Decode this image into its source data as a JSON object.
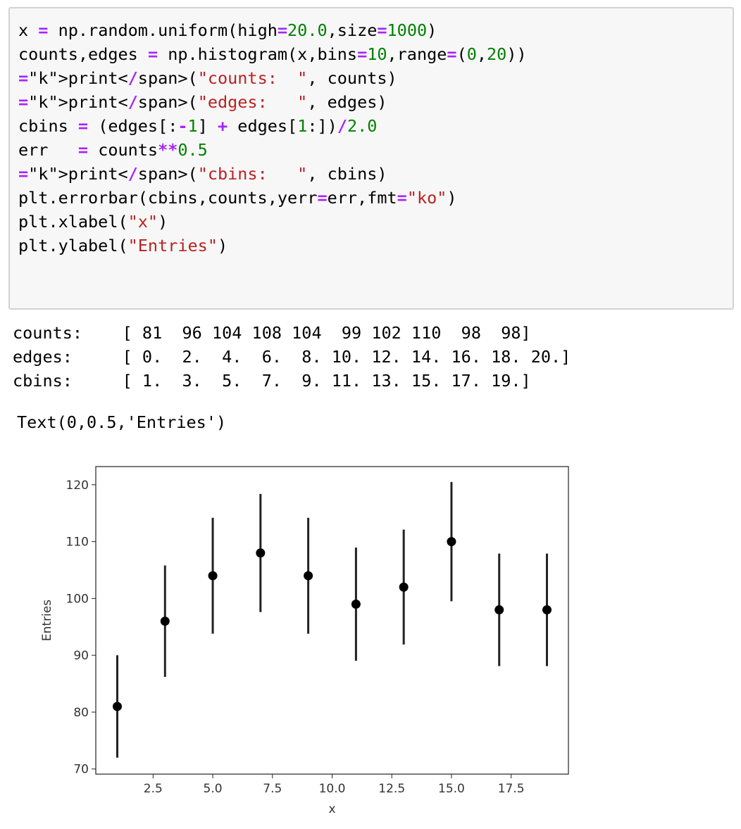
{
  "code_lines": [
    "x = np.random.uniform(high=20.0,size=1000)",
    "counts,edges = np.histogram(x,bins=10,range=(0,20))",
    "print(\"counts:  \", counts)",
    "print(\"edges:   \", edges)",
    "cbins = (edges[:-1] + edges[1:])/2.0",
    "err   = counts**0.5",
    "print(\"cbins:   \", cbins)",
    "plt.errorbar(cbins,counts,yerr=err,fmt=\"ko\")",
    "plt.xlabel(\"x\")",
    "plt.ylabel(\"Entries\")"
  ],
  "stdout_lines": [
    "counts:    [ 81  96 104 108 104  99 102 110  98  98]",
    "edges:     [ 0.  2.  4.  6.  8. 10. 12. 14. 16. 18. 20.]",
    "cbins:     [ 1.  3.  5.  7.  9. 11. 13. 15. 17. 19.]"
  ],
  "result_text": "Text(0,0.5,'Entries')",
  "chart_data": {
    "type": "scatter",
    "x": [
      1,
      3,
      5,
      7,
      9,
      11,
      13,
      15,
      17,
      19
    ],
    "y": [
      81,
      96,
      104,
      108,
      104,
      99,
      102,
      110,
      98,
      98
    ],
    "yerr": [
      9.0,
      9.8,
      10.2,
      10.39,
      10.2,
      9.95,
      10.1,
      10.49,
      9.9,
      9.9
    ],
    "xlabel": "x",
    "ylabel": "Entries",
    "xlim": [
      0.1,
      19.9
    ],
    "ylim": [
      69.1,
      123.2
    ],
    "xticks": [
      2.5,
      5.0,
      7.5,
      10.0,
      12.5,
      15.0,
      17.5
    ],
    "xtick_labels": [
      "2.5",
      "5.0",
      "7.5",
      "10.0",
      "12.5",
      "15.0",
      "17.5"
    ],
    "yticks": [
      70,
      80,
      90,
      100,
      110,
      120
    ],
    "ytick_labels": [
      "70",
      "80",
      "90",
      "100",
      "110",
      "120"
    ],
    "marker_color": "#000000",
    "grid": false
  }
}
